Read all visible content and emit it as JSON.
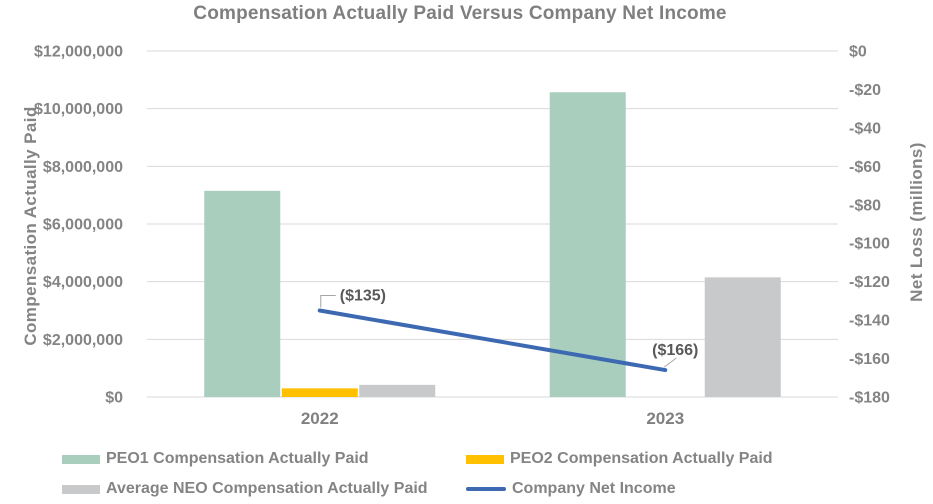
{
  "chart_data": {
    "type": "bar",
    "subtype": "grouped-bar-with-line-combo",
    "title": "Compensation Actually Paid Versus Company Net Income",
    "categories": [
      "2022",
      "2023"
    ],
    "series": [
      {
        "name": "PEO1 Compensation Actually Paid",
        "type": "bar",
        "axis": "left",
        "color": "#A9CEBD",
        "values": [
          7150000,
          10570000
        ]
      },
      {
        "name": "PEO2 Compensation Actually Paid",
        "type": "bar",
        "axis": "left",
        "color": "#FFC000",
        "values": [
          300000,
          0
        ]
      },
      {
        "name": "Average NEO Compensation Actually Paid",
        "type": "bar",
        "axis": "left",
        "color": "#C7C9CB",
        "values": [
          420000,
          4150000
        ]
      },
      {
        "name": "Company Net Income",
        "type": "line",
        "axis": "right",
        "color": "#3C69B2",
        "values": [
          -135,
          -166
        ],
        "data_labels": [
          "($135)",
          "($166)"
        ]
      }
    ],
    "left_axis": {
      "title": "Compensation Actually Paid",
      "min": 0,
      "max": 12000000,
      "ticks": [
        "$12,000,000",
        "$10,000,000",
        "$8,000,000",
        "$6,000,000",
        "$4,000,000",
        "$2,000,000",
        "$0"
      ]
    },
    "right_axis": {
      "title": "Net Loss (millions)",
      "min": -180,
      "max": 0,
      "ticks": [
        "$0",
        "-$20",
        "-$40",
        "-$60",
        "-$80",
        "-$100",
        "-$120",
        "-$140",
        "-$160",
        "-$180"
      ]
    },
    "grid": true,
    "legend_position": "bottom",
    "colors": {
      "gridline": "#D9D9D9",
      "title_text": "#7F7F7F",
      "axis_text": "#848484",
      "callout_text": "#595959",
      "leader_line": "#A6A6A6"
    }
  }
}
